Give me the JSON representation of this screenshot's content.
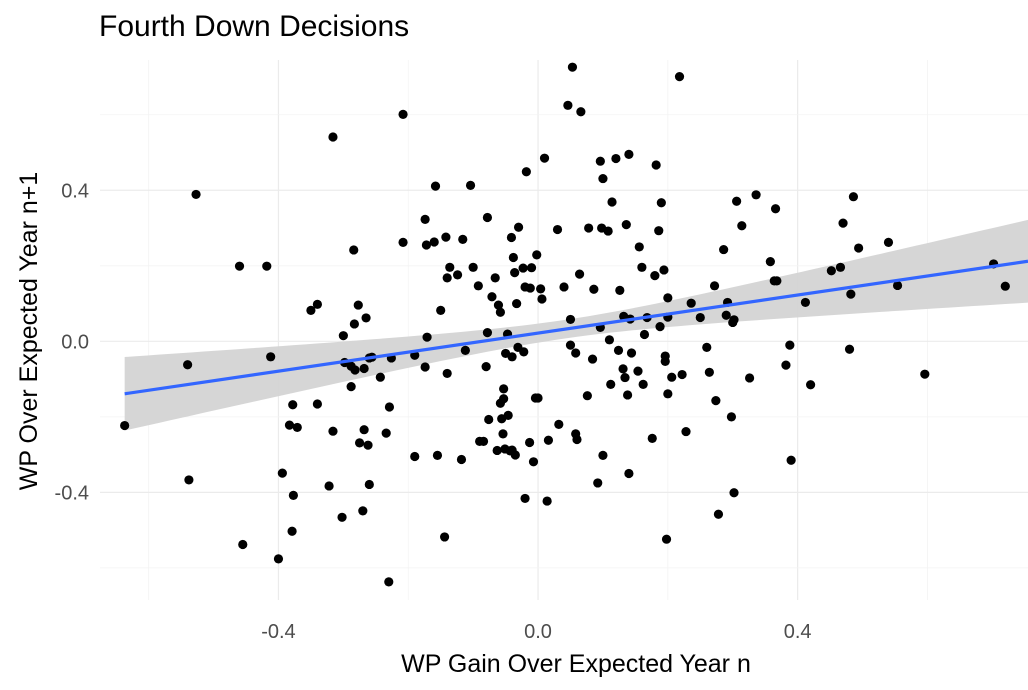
{
  "chart_data": {
    "type": "scatter",
    "title": "Fourth Down Decisions",
    "xlabel": "WP Gain Over Expected Year n",
    "ylabel": "WP Over Expected Year n+1",
    "xlim": [
      -0.675,
      0.755
    ],
    "ylim": [
      -0.685,
      0.745
    ],
    "x_ticks": [
      -0.4,
      0.0,
      0.4
    ],
    "x_tick_labels": [
      "-0.4",
      "0.0",
      "0.4"
    ],
    "y_ticks": [
      -0.4,
      0.0,
      0.4
    ],
    "y_tick_labels": [
      "-0.4",
      "0.0",
      "0.4"
    ],
    "grid": true,
    "point_color": "#000000",
    "trend": {
      "method": "linear",
      "x_range": [
        -0.637,
        0.755
      ],
      "intercept": 0.0217,
      "slope": 0.2521,
      "line_color": "#3366ff",
      "ribbon_color": "#d4d4d4",
      "ribbon_half_width": {
        "at_min": 0.0974,
        "at_center": 0.0246,
        "at_max": 0.1096
      },
      "ribbon_center_x": 0.04
    },
    "points": [
      [
        -0.637,
        -0.223
      ],
      [
        -0.54,
        -0.062
      ],
      [
        -0.538,
        -0.367
      ],
      [
        -0.527,
        0.389
      ],
      [
        -0.46,
        0.199
      ],
      [
        -0.455,
        -0.538
      ],
      [
        -0.418,
        0.199
      ],
      [
        -0.412,
        -0.041
      ],
      [
        -0.4,
        -0.576
      ],
      [
        -0.394,
        -0.349
      ],
      [
        -0.379,
        -0.503
      ],
      [
        -0.377,
        -0.408
      ],
      [
        -0.378,
        -0.168
      ],
      [
        -0.371,
        -0.228
      ],
      [
        -0.383,
        -0.222
      ],
      [
        -0.35,
        0.082
      ],
      [
        -0.34,
        0.098
      ],
      [
        -0.34,
        -0.166
      ],
      [
        -0.322,
        -0.383
      ],
      [
        -0.316,
        0.541
      ],
      [
        -0.316,
        -0.238
      ],
      [
        -0.302,
        -0.466
      ],
      [
        -0.3,
        0.015
      ],
      [
        -0.298,
        -0.056
      ],
      [
        -0.288,
        -0.066
      ],
      [
        -0.288,
        -0.12
      ],
      [
        -0.284,
        0.242
      ],
      [
        -0.282,
        -0.076
      ],
      [
        -0.283,
        0.046
      ],
      [
        -0.277,
        0.096
      ],
      [
        -0.275,
        -0.269
      ],
      [
        -0.27,
        -0.449
      ],
      [
        -0.268,
        -0.234
      ],
      [
        -0.268,
        -0.072
      ],
      [
        -0.265,
        0.062
      ],
      [
        -0.262,
        -0.275
      ],
      [
        -0.26,
        -0.044
      ],
      [
        -0.26,
        -0.379
      ],
      [
        -0.256,
        -0.042
      ],
      [
        -0.243,
        -0.095
      ],
      [
        -0.234,
        -0.243
      ],
      [
        -0.229,
        -0.174
      ],
      [
        -0.23,
        -0.637
      ],
      [
        -0.226,
        -0.044
      ],
      [
        -0.208,
        0.601
      ],
      [
        -0.208,
        0.262
      ],
      [
        -0.19,
        -0.037
      ],
      [
        -0.19,
        -0.305
      ],
      [
        -0.174,
        -0.068
      ],
      [
        -0.174,
        0.323
      ],
      [
        -0.172,
        0.255
      ],
      [
        -0.171,
        0.011
      ],
      [
        -0.16,
        0.263
      ],
      [
        -0.158,
        0.411
      ],
      [
        -0.155,
        -0.302
      ],
      [
        -0.15,
        0.082
      ],
      [
        -0.142,
        0.276
      ],
      [
        -0.14,
        0.168
      ],
      [
        -0.144,
        -0.518
      ],
      [
        -0.14,
        -0.085
      ],
      [
        -0.136,
        0.196
      ],
      [
        -0.124,
        0.176
      ],
      [
        -0.118,
        -0.313
      ],
      [
        -0.116,
        0.27
      ],
      [
        -0.112,
        -0.024
      ],
      [
        -0.104,
        0.413
      ],
      [
        -0.1,
        0.196
      ],
      [
        -0.092,
        0.147
      ],
      [
        -0.09,
        -0.265
      ],
      [
        -0.084,
        -0.265
      ],
      [
        -0.08,
        -0.067
      ],
      [
        -0.078,
        0.328
      ],
      [
        -0.078,
        0.023
      ],
      [
        -0.076,
        -0.207
      ],
      [
        -0.071,
        0.118
      ],
      [
        -0.066,
        0.168
      ],
      [
        -0.063,
        -0.289
      ],
      [
        -0.061,
        0.096
      ],
      [
        -0.058,
        0.077
      ],
      [
        -0.058,
        -0.164
      ],
      [
        -0.056,
        -0.205
      ],
      [
        -0.054,
        -0.245
      ],
      [
        -0.053,
        -0.152
      ],
      [
        -0.053,
        -0.126
      ],
      [
        -0.051,
        -0.285
      ],
      [
        -0.05,
        -0.032
      ],
      [
        -0.047,
        0.019
      ],
      [
        -0.046,
        -0.196
      ],
      [
        -0.043,
        -0.29
      ],
      [
        -0.041,
        0.275
      ],
      [
        -0.04,
        -0.288
      ],
      [
        -0.04,
        -0.041
      ],
      [
        -0.038,
        0.222
      ],
      [
        -0.036,
        0.182
      ],
      [
        -0.035,
        -0.301
      ],
      [
        -0.033,
        0.1
      ],
      [
        -0.031,
        -0.016
      ],
      [
        -0.03,
        0.302
      ],
      [
        -0.023,
        0.194
      ],
      [
        -0.022,
        -0.028
      ],
      [
        -0.02,
        0.144
      ],
      [
        -0.018,
        0.449
      ],
      [
        -0.02,
        -0.416
      ],
      [
        -0.013,
        -0.268
      ],
      [
        -0.012,
        0.141
      ],
      [
        -0.01,
        0.195
      ],
      [
        -0.007,
        -0.319
      ],
      [
        -0.004,
        -0.15
      ],
      [
        -0.002,
        0.229
      ],
      [
        0.0,
        -0.15
      ],
      [
        0.004,
        0.139
      ],
      [
        0.006,
        0.112
      ],
      [
        0.01,
        0.485
      ],
      [
        0.014,
        -0.423
      ],
      [
        0.016,
        -0.262
      ],
      [
        0.03,
        0.296
      ],
      [
        0.032,
        -0.22
      ],
      [
        0.04,
        0.144
      ],
      [
        0.046,
        0.625
      ],
      [
        0.05,
        0.058
      ],
      [
        0.05,
        -0.01
      ],
      [
        0.053,
        0.726
      ],
      [
        0.058,
        -0.031
      ],
      [
        0.058,
        -0.245
      ],
      [
        0.06,
        -0.26
      ],
      [
        0.064,
        0.178
      ],
      [
        0.066,
        0.608
      ],
      [
        0.076,
        -0.144
      ],
      [
        0.078,
        0.3
      ],
      [
        0.084,
        -0.047
      ],
      [
        0.086,
        0.138
      ],
      [
        0.092,
        -0.375
      ],
      [
        0.096,
        0.037
      ],
      [
        0.096,
        0.477
      ],
      [
        0.098,
        0.3
      ],
      [
        0.1,
        0.431
      ],
      [
        0.1,
        -0.302
      ],
      [
        0.108,
        0.292
      ],
      [
        0.11,
        0.004
      ],
      [
        0.112,
        -0.114
      ],
      [
        0.114,
        0.369
      ],
      [
        0.12,
        0.484
      ],
      [
        0.124,
        -0.024
      ],
      [
        0.126,
        0.135
      ],
      [
        0.131,
        -0.073
      ],
      [
        0.132,
        0.066
      ],
      [
        0.134,
        -0.096
      ],
      [
        0.136,
        0.309
      ],
      [
        0.138,
        -0.142
      ],
      [
        0.14,
        -0.35
      ],
      [
        0.14,
        0.495
      ],
      [
        0.142,
        0.059
      ],
      [
        0.144,
        -0.031
      ],
      [
        0.154,
        -0.079
      ],
      [
        0.156,
        0.25
      ],
      [
        0.16,
        0.196
      ],
      [
        0.162,
        -0.114
      ],
      [
        0.164,
        0.018
      ],
      [
        0.168,
        0.063
      ],
      [
        0.176,
        -0.257
      ],
      [
        0.18,
        0.174
      ],
      [
        0.182,
        0.467
      ],
      [
        0.186,
        0.293
      ],
      [
        0.188,
        0.039
      ],
      [
        0.19,
        0.367
      ],
      [
        0.194,
        0.189
      ],
      [
        0.196,
        -0.039
      ],
      [
        0.196,
        -0.053
      ],
      [
        0.198,
        -0.524
      ],
      [
        0.2,
        0.115
      ],
      [
        0.2,
        0.064
      ],
      [
        0.2,
        -0.139
      ],
      [
        0.206,
        -0.095
      ],
      [
        0.218,
        0.701
      ],
      [
        0.222,
        -0.088
      ],
      [
        0.228,
        -0.239
      ],
      [
        0.236,
        0.101
      ],
      [
        0.25,
        0.063
      ],
      [
        0.26,
        -0.016
      ],
      [
        0.264,
        -0.082
      ],
      [
        0.272,
        0.147
      ],
      [
        0.274,
        -0.157
      ],
      [
        0.278,
        -0.458
      ],
      [
        0.286,
        0.243
      ],
      [
        0.29,
        0.069
      ],
      [
        0.292,
        0.103
      ],
      [
        0.298,
        -0.2
      ],
      [
        0.3,
        0.05
      ],
      [
        0.302,
        0.057
      ],
      [
        0.302,
        -0.401
      ],
      [
        0.306,
        0.371
      ],
      [
        0.314,
        0.306
      ],
      [
        0.326,
        -0.097
      ],
      [
        0.336,
        0.388
      ],
      [
        0.358,
        0.211
      ],
      [
        0.364,
        0.16
      ],
      [
        0.366,
        0.351
      ],
      [
        0.368,
        0.16
      ],
      [
        0.382,
        -0.063
      ],
      [
        0.388,
        -0.01
      ],
      [
        0.39,
        -0.315
      ],
      [
        0.412,
        0.103
      ],
      [
        0.42,
        -0.115
      ],
      [
        0.452,
        0.187
      ],
      [
        0.466,
        0.196
      ],
      [
        0.47,
        0.313
      ],
      [
        0.48,
        -0.021
      ],
      [
        0.482,
        0.125
      ],
      [
        0.486,
        0.383
      ],
      [
        0.494,
        0.247
      ],
      [
        0.54,
        0.262
      ],
      [
        0.554,
        0.148
      ],
      [
        0.596,
        -0.087
      ],
      [
        0.702,
        0.205
      ],
      [
        0.72,
        0.146
      ]
    ]
  }
}
